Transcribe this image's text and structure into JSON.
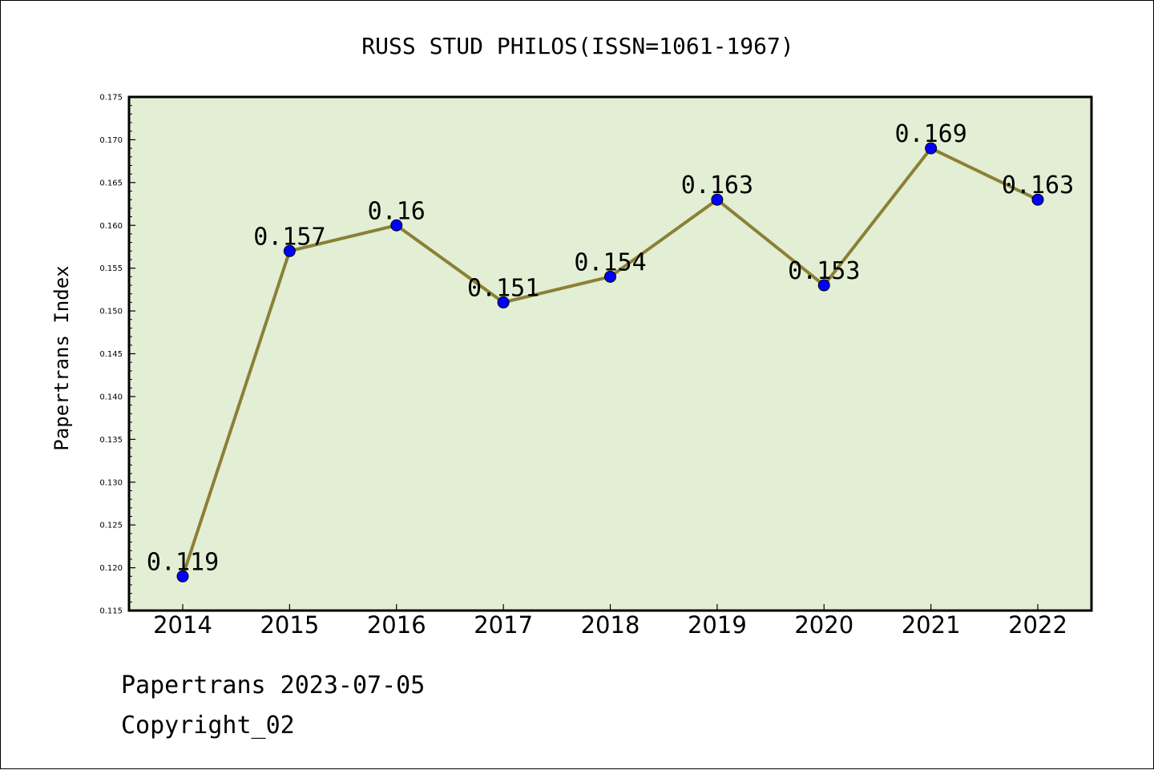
{
  "chart_data": {
    "type": "line",
    "title": "RUSS STUD PHILOS(ISSN=1061-1967)",
    "xlabel": "",
    "ylabel": "Papertrans Index",
    "categories": [
      "2014",
      "2015",
      "2016",
      "2017",
      "2018",
      "2019",
      "2020",
      "2021",
      "2022"
    ],
    "values": [
      0.119,
      0.157,
      0.16,
      0.151,
      0.154,
      0.163,
      0.153,
      0.169,
      0.163
    ],
    "data_labels": [
      "0.119",
      "0.157",
      "0.16",
      "0.151",
      "0.154",
      "0.163",
      "0.153",
      "0.169",
      "0.163"
    ],
    "ylim": [
      0.115,
      0.175
    ],
    "yticks": [
      "0.115",
      "0.120",
      "0.125",
      "0.130",
      "0.135",
      "0.140",
      "0.145",
      "0.150",
      "0.155",
      "0.160",
      "0.165",
      "0.170",
      "0.175"
    ],
    "grid": false,
    "legend": "none",
    "colors": {
      "plot_background": "#e2efd5",
      "line": "#8b8036",
      "marker": "#0000ff"
    }
  },
  "footer": {
    "line1": "Papertrans 2023-07-05",
    "line2": "Copyright_02"
  }
}
